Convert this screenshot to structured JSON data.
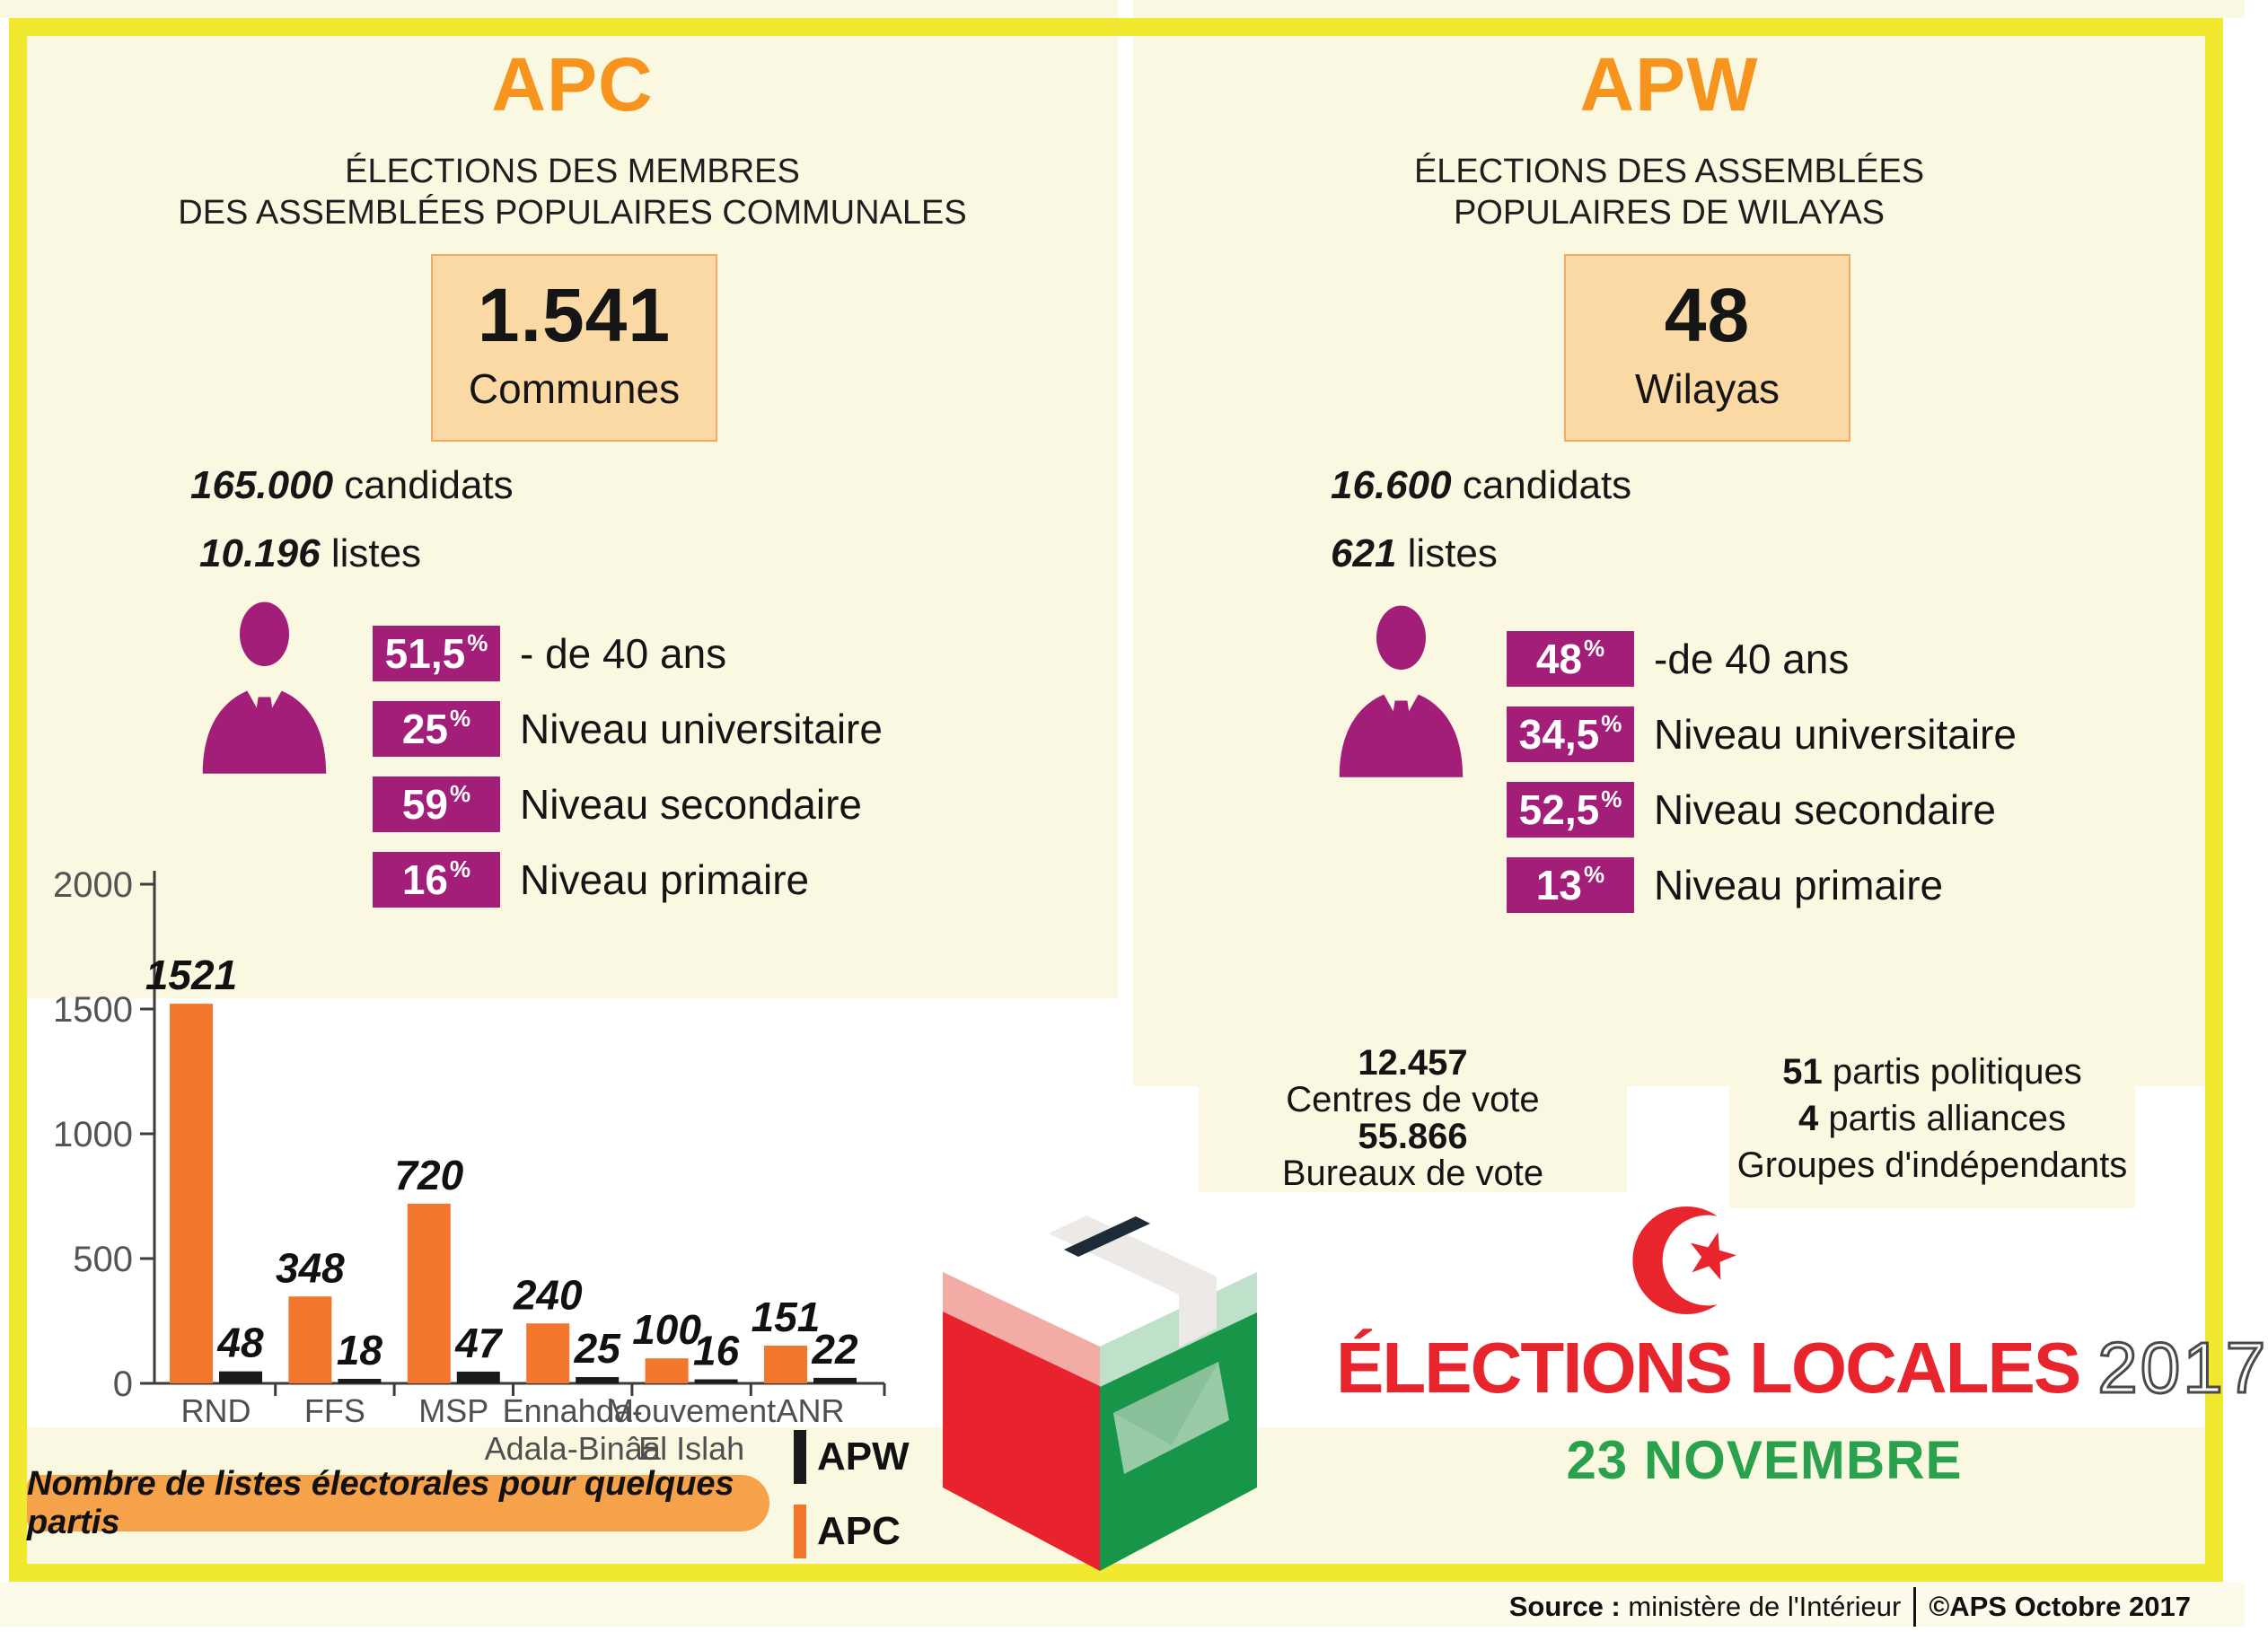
{
  "panels": {
    "apc": {
      "title": "APC",
      "subtitle_line1": "ÉLECTIONS DES MEMBRES",
      "subtitle_line2": "DES ASSEMBLÉES POPULAIRES COMMUNALES",
      "highlight_number": "1.541",
      "highlight_label": "Communes",
      "candidates_number": "165.000",
      "candidates_label": "candidats",
      "lists_number": "10.196",
      "lists_label": "listes",
      "stats": [
        {
          "value": "51,5",
          "unit": "%",
          "label": "- de 40 ans"
        },
        {
          "value": "25",
          "unit": "%",
          "label": "Niveau universitaire"
        },
        {
          "value": "59",
          "unit": "%",
          "label": "Niveau secondaire"
        },
        {
          "value": "16",
          "unit": "%",
          "label": "Niveau primaire"
        }
      ]
    },
    "apw": {
      "title": "APW",
      "subtitle_line1": "ÉLECTIONS DES ASSEMBLÉES",
      "subtitle_line2": "POPULAIRES DE WILAYAS",
      "highlight_number": "48",
      "highlight_label": "Wilayas",
      "candidates_number": "16.600",
      "candidates_label": "candidats",
      "lists_number": "621",
      "lists_label": "listes",
      "stats": [
        {
          "value": "48",
          "unit": "%",
          "label": "-de 40 ans"
        },
        {
          "value": "34,5",
          "unit": "%",
          "label": "Niveau universitaire"
        },
        {
          "value": "52,5",
          "unit": "%",
          "label": "Niveau secondaire"
        },
        {
          "value": "13",
          "unit": "%",
          "label": "Niveau primaire"
        }
      ]
    }
  },
  "chart_data": {
    "type": "bar",
    "title": "Nombre de listes électorales pour quelques partis",
    "categories": [
      [
        "RND"
      ],
      [
        "FFS"
      ],
      [
        "MSP"
      ],
      [
        "Ennahda-",
        "Adala-Binâa"
      ],
      [
        "Mouvement",
        "El Islah"
      ],
      [
        "ANR"
      ]
    ],
    "series": [
      {
        "name": "APC",
        "color": "#F2762C",
        "values": [
          1521,
          348,
          720,
          240,
          100,
          151
        ]
      },
      {
        "name": "APW",
        "color": "#1A1A1A",
        "values": [
          48,
          18,
          47,
          25,
          16,
          22
        ]
      }
    ],
    "ylim": [
      0,
      2000
    ],
    "yticks": [
      0,
      500,
      1000,
      1500,
      2000
    ],
    "grid": false,
    "legend_position": "bottom-right"
  },
  "chart": {
    "legend": [
      {
        "label": "APW",
        "color": "#1A1A1A"
      },
      {
        "label": "APC",
        "color": "#F2762C"
      }
    ]
  },
  "footer": {
    "vote_centers_number": "12.457",
    "vote_centers_label": "Centres de vote",
    "vote_offices_number": "55.866",
    "vote_offices_label": "Bureaux de vote",
    "parties_line1_number": "51",
    "parties_line1_label": "partis politiques",
    "parties_line2_number": "4",
    "parties_line2_label": "partis alliances",
    "parties_line3_label": "Groupes d'indépendants",
    "main_title": "ÉLECTIONS LOCALES",
    "year": "2017",
    "date": "23 NOVEMBRE",
    "source_label": "Source :",
    "source_value": "ministère de l'Intérieur",
    "credit": "©APS Octobre 2017"
  }
}
